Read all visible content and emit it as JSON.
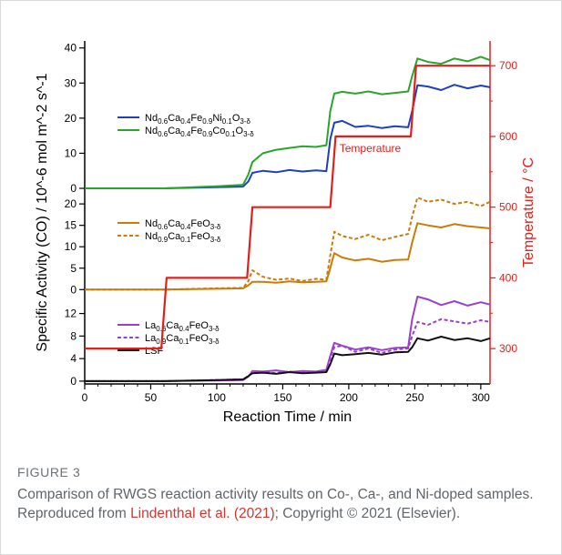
{
  "figure": {
    "label": "FIGURE 3",
    "caption_part1": "Comparison of RWGS reaction activity results on Co-, Ca-, and Ni-doped samples. Reproduced from ",
    "caption_link": "Lindenthal et al. (2021)",
    "caption_part2": "; Copyright © 2021 (Elsevier)."
  },
  "chart_data": {
    "type": "line",
    "xlabel": "Reaction Time / min",
    "ylabel_left": "Specific Activity (CO) / 10^-6 mol m^-2 s^-1",
    "ylabel_right": "Temperature / °C",
    "x_ticks": [
      "0",
      "50",
      "100",
      "150",
      "200",
      "250",
      "300"
    ],
    "xlim": [
      0,
      307
    ],
    "right_ticks": [
      "300",
      "400",
      "500",
      "600",
      "700"
    ],
    "right_ylim": [
      250,
      735
    ],
    "temperature_label": "Temperature",
    "temperature_color": "#e0201b",
    "temperature": {
      "x": [
        0,
        58,
        62,
        123,
        127,
        186,
        190,
        247,
        251,
        307
      ],
      "y": [
        300,
        300,
        400,
        400,
        500,
        500,
        600,
        600,
        700,
        700
      ]
    },
    "panels": [
      {
        "name": "top",
        "yticks": [
          "0",
          "10",
          "20",
          "30",
          "40"
        ],
        "ylim": [
          0,
          42
        ],
        "legend": [
          {
            "text": "Nd0.6Ca0.4Fe0.9Ni0.1O3-δ",
            "base": "Nd",
            "parts": [
              [
                "0.6",
                "Ca"
              ],
              [
                "0.4",
                "Fe"
              ],
              [
                "0.9",
                "Ni"
              ],
              [
                "0.1",
                "O"
              ],
              [
                "3-δ",
                ""
              ]
            ],
            "color": "#1f3fbf",
            "dash": false
          },
          {
            "text": "Nd0.6Ca0.4Fe0.9Co0.1O3-δ",
            "base": "Nd",
            "parts": [
              [
                "0.6",
                "Ca"
              ],
              [
                "0.4",
                "Fe"
              ],
              [
                "0.9",
                "Co"
              ],
              [
                "0.1",
                "O"
              ],
              [
                "3-δ",
                ""
              ]
            ],
            "color": "#2aa52a",
            "dash": false
          }
        ],
        "series": [
          {
            "name": "Nd0.6Ca0.4Fe0.9Ni0.1O3-δ",
            "color": "#1f3fbf",
            "dash": false,
            "x": [
              0,
              60,
              100,
              120,
              124,
              127,
              135,
              145,
              155,
              165,
              175,
              183,
              186,
              189,
              195,
              205,
              215,
              225,
              235,
              245,
              248,
              252,
              260,
              270,
              280,
              290,
              300,
              307
            ],
            "y": [
              0,
              0,
              0.3,
              0.5,
              2,
              4.4,
              5,
              4.6,
              5.2,
              4.8,
              5.1,
              4.9,
              14,
              18.7,
              19.2,
              17.5,
              17.8,
              17.2,
              17.7,
              17.4,
              22,
              29.4,
              29,
              28,
              29.5,
              28.5,
              29.3,
              28.8
            ]
          },
          {
            "name": "Nd0.6Ca0.4Fe0.9Co0.1O3-δ",
            "color": "#2aa52a",
            "dash": false,
            "x": [
              0,
              60,
              100,
              120,
              124,
              127,
              135,
              145,
              155,
              165,
              175,
              183,
              186,
              189,
              195,
              205,
              215,
              225,
              235,
              245,
              248,
              252,
              260,
              270,
              280,
              290,
              300,
              307
            ],
            "y": [
              0,
              0,
              0.6,
              1,
              4,
              7.5,
              10,
              11,
              11.5,
              12,
              11.8,
              12.3,
              22,
              27,
              27.5,
              27,
              27.6,
              26.8,
              27.2,
              27.6,
              32,
              37,
              36,
              35.5,
              37,
              36.2,
              37.5,
              36.5
            ]
          }
        ]
      },
      {
        "name": "middle",
        "yticks": [
          "0",
          "5",
          "10",
          "15",
          "20"
        ],
        "ylim": [
          -1,
          23
        ],
        "legend": [
          {
            "text": "Nd0.6Ca0.4FeO3-δ",
            "base": "Nd",
            "parts": [
              [
                "0.6",
                "Ca"
              ],
              [
                "0.4",
                "FeO"
              ],
              [
                "3-δ",
                ""
              ]
            ],
            "color": "#cc7a0a",
            "dash": false
          },
          {
            "text": "Nd0.9Ca0.1FeO3-δ",
            "base": "Nd",
            "parts": [
              [
                "0.9",
                "Ca"
              ],
              [
                "0.1",
                "FeO"
              ],
              [
                "3-δ",
                ""
              ]
            ],
            "color": "#cc7a0a",
            "dash": true
          }
        ],
        "series": [
          {
            "name": "Nd0.6Ca0.4FeO3-δ",
            "color": "#cc7a0a",
            "dash": false,
            "x": [
              0,
              60,
              100,
              120,
              124,
              127,
              135,
              145,
              155,
              165,
              175,
              183,
              186,
              189,
              195,
              205,
              215,
              225,
              235,
              245,
              248,
              252,
              260,
              270,
              280,
              290,
              300,
              307
            ],
            "y": [
              0,
              0,
              0.2,
              0.3,
              1,
              1.8,
              1.8,
              1.6,
              1.9,
              1.7,
              1.8,
              1.9,
              5,
              8.5,
              7.5,
              6.8,
              7.2,
              6.5,
              6.9,
              7,
              11,
              15.5,
              15,
              14.5,
              15.3,
              14.8,
              14.5,
              14.3
            ]
          },
          {
            "name": "Nd0.9Ca0.1FeO3-δ",
            "color": "#cc7a0a",
            "dash": true,
            "x": [
              0,
              60,
              100,
              120,
              124,
              127,
              135,
              145,
              155,
              165,
              175,
              183,
              186,
              189,
              195,
              205,
              215,
              225,
              235,
              245,
              248,
              252,
              260,
              270,
              280,
              290,
              300,
              307
            ],
            "y": [
              0,
              0,
              0.3,
              0.4,
              2,
              4.5,
              3,
              2.3,
              2.6,
              2,
              2.5,
              2.3,
              8,
              13.5,
              12.5,
              11.8,
              12.8,
              11.5,
              12.3,
              13,
              17,
              21.5,
              20.5,
              21,
              20,
              20.5,
              19.5,
              20.5
            ]
          }
        ]
      },
      {
        "name": "bottom",
        "yticks": [
          "0",
          "4",
          "8",
          "12"
        ],
        "ylim": [
          -0.5,
          15
        ],
        "legend": [
          {
            "text": "La0.6Ca0.4FeO3-δ",
            "base": "La",
            "parts": [
              [
                "0.6",
                "Ca"
              ],
              [
                "0.4",
                "FeO"
              ],
              [
                "3-δ",
                ""
              ]
            ],
            "color": "#9b3fd1",
            "dash": false
          },
          {
            "text": "La0.9Ca0.1FeO3-δ",
            "base": "La",
            "parts": [
              [
                "0.9",
                "Ca"
              ],
              [
                "0.1",
                "FeO"
              ],
              [
                "3-δ",
                ""
              ]
            ],
            "color": "#9b3fd1",
            "dash": true
          },
          {
            "text": "LSF",
            "base": "LSF",
            "parts": [],
            "color": "#111111",
            "dash": false
          }
        ],
        "series": [
          {
            "name": "La0.6Ca0.4FeO3-δ",
            "color": "#9b3fd1",
            "dash": false,
            "x": [
              0,
              60,
              100,
              120,
              124,
              127,
              135,
              145,
              155,
              165,
              175,
              183,
              186,
              189,
              195,
              205,
              215,
              225,
              235,
              245,
              248,
              252,
              260,
              270,
              280,
              290,
              300,
              307
            ],
            "y": [
              0,
              0,
              0.1,
              0.2,
              0.8,
              1.8,
              1.7,
              1.9,
              1.6,
              1.8,
              1.7,
              2,
              4.5,
              6.8,
              6.3,
              5.6,
              6,
              5.5,
              5.9,
              6,
              11,
              15,
              14.5,
              13.5,
              14.2,
              13.4,
              14,
              13.6
            ]
          },
          {
            "name": "La0.9Ca0.1FeO3-δ",
            "color": "#9b3fd1",
            "dash": true,
            "x": [
              0,
              60,
              100,
              120,
              124,
              127,
              135,
              145,
              155,
              165,
              175,
              183,
              186,
              189,
              195,
              205,
              215,
              225,
              235,
              245,
              248,
              252,
              260,
              270,
              280,
              290,
              300,
              307
            ],
            "y": [
              0,
              0,
              0.2,
              0.3,
              0.9,
              1.5,
              1.6,
              1.4,
              1.7,
              1.5,
              1.6,
              1.8,
              4,
              6,
              6.3,
              5.2,
              5.8,
              5,
              5.6,
              5.8,
              8,
              10.5,
              10,
              11,
              10.6,
              10.2,
              10.8,
              10.5
            ]
          },
          {
            "name": "LSF",
            "color": "#111111",
            "dash": false,
            "x": [
              0,
              60,
              100,
              120,
              124,
              127,
              135,
              145,
              155,
              165,
              175,
              183,
              186,
              189,
              195,
              205,
              215,
              225,
              235,
              245,
              248,
              252,
              260,
              270,
              280,
              290,
              300,
              307
            ],
            "y": [
              0,
              0,
              0.2,
              0.3,
              0.9,
              1.4,
              1.5,
              1.3,
              1.6,
              1.4,
              1.5,
              1.6,
              3,
              4.9,
              4.6,
              4.8,
              5,
              4.7,
              5.1,
              5.2,
              6,
              7.6,
              7.2,
              7.9,
              7.3,
              7.6,
              7.1,
              7.6
            ]
          }
        ]
      }
    ]
  }
}
